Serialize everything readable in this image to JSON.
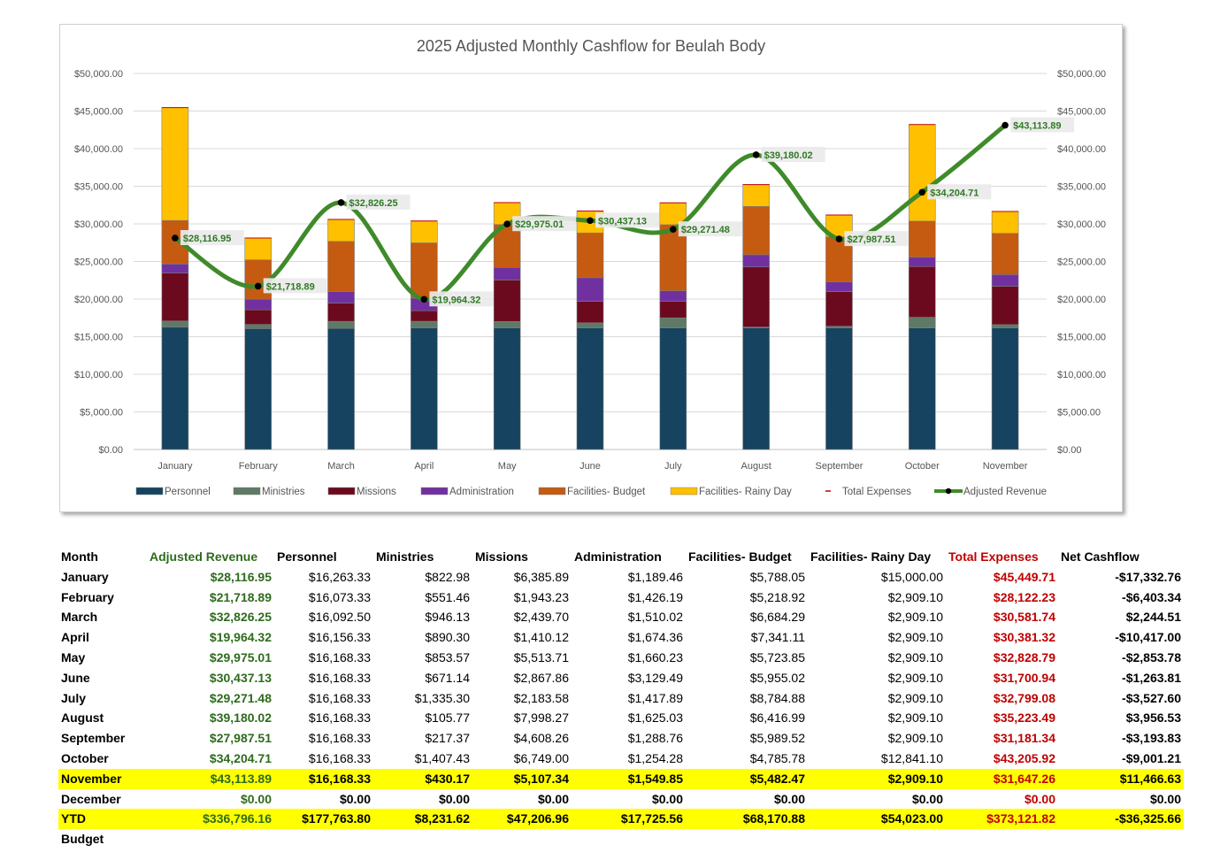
{
  "chart_data": {
    "type": "bar",
    "title": "2025 Adjusted Monthly Cashflow for Beulah Body",
    "categories": [
      "January",
      "February",
      "March",
      "April",
      "May",
      "June",
      "July",
      "August",
      "September",
      "October",
      "November"
    ],
    "ylim": [
      0,
      50000
    ],
    "yticks": [
      "$0.00",
      "$5,000.00",
      "$10,000.00",
      "$15,000.00",
      "$20,000.00",
      "$25,000.00",
      "$30,000.00",
      "$35,000.00",
      "$40,000.00",
      "$45,000.00",
      "$50,000.00"
    ],
    "stacked": true,
    "series": [
      {
        "name": "Personnel",
        "color": "#154360",
        "values": [
          16263.33,
          16073.33,
          16092.5,
          16156.33,
          16168.33,
          16168.33,
          16168.33,
          16168.33,
          16168.33,
          16168.33,
          16168.33
        ]
      },
      {
        "name": "Ministries",
        "color": "#5e7a67",
        "values": [
          822.98,
          551.46,
          946.13,
          890.3,
          853.57,
          671.14,
          1335.3,
          105.77,
          217.37,
          1407.43,
          430.17
        ]
      },
      {
        "name": "Missions",
        "color": "#6b0a1e",
        "values": [
          6385.89,
          1943.23,
          2439.7,
          1410.12,
          5513.71,
          2867.86,
          2183.58,
          7998.27,
          4608.26,
          6749.0,
          5107.34
        ]
      },
      {
        "name": "Administration",
        "color": "#7030a0",
        "values": [
          1189.46,
          1426.19,
          1510.02,
          1674.36,
          1660.23,
          3129.49,
          1417.89,
          1625.03,
          1288.76,
          1254.28,
          1549.85
        ]
      },
      {
        "name": "Facilities- Budget",
        "color": "#c55a11",
        "values": [
          5788.05,
          5218.92,
          6684.29,
          7341.11,
          5723.85,
          5955.02,
          8784.88,
          6416.99,
          5989.52,
          4785.78,
          5482.47
        ]
      },
      {
        "name": "Facilities- Rainy Day",
        "color": "#ffc000",
        "values": [
          15000.0,
          2909.1,
          2909.1,
          2909.1,
          2909.1,
          2909.1,
          2909.1,
          2909.1,
          2909.1,
          12841.1,
          2909.1
        ]
      }
    ],
    "total_expenses": {
      "name": "Total Expenses",
      "color": "#c00000",
      "values": [
        45449.71,
        28122.23,
        30581.74,
        30381.32,
        32828.79,
        31700.94,
        32799.08,
        35223.49,
        31181.34,
        43205.92,
        31647.26
      ]
    },
    "line": {
      "name": "Adjusted Revenue",
      "color": "#3f8a2a",
      "values": [
        28116.95,
        21718.89,
        32826.25,
        19964.32,
        29975.01,
        30437.13,
        29271.48,
        39180.02,
        27987.51,
        34204.71,
        43113.89
      ],
      "labels": [
        "$28,116.95",
        "$21,718.89",
        "$32,826.25",
        "$19,964.32",
        "$29,975.01",
        "$30,437.13",
        "$29,271.48",
        "$39,180.02",
        "$27,987.51",
        "$34,204.71",
        "$43,113.89"
      ]
    },
    "legend": [
      "Personnel",
      "Ministries",
      "Missions",
      "Administration",
      "Facilities- Budget",
      "Facilities- Rainy Day",
      "Total Expenses",
      "Adjusted Revenue"
    ],
    "legend_position": "bottom"
  },
  "table": {
    "headers": [
      "Month",
      "Adjusted Revenue",
      "Personnel",
      "Ministries",
      "Missions",
      "Administration",
      "Facilities- Budget",
      "Facilities- Rainy Day",
      "Total Expenses",
      "Net Cashflow"
    ],
    "rows": [
      [
        "January",
        "$28,116.95",
        "$16,263.33",
        "$822.98",
        "$6,385.89",
        "$1,189.46",
        "$5,788.05",
        "$15,000.00",
        "$45,449.71",
        "-$17,332.76"
      ],
      [
        "February",
        "$21,718.89",
        "$16,073.33",
        "$551.46",
        "$1,943.23",
        "$1,426.19",
        "$5,218.92",
        "$2,909.10",
        "$28,122.23",
        "-$6,403.34"
      ],
      [
        "March",
        "$32,826.25",
        "$16,092.50",
        "$946.13",
        "$2,439.70",
        "$1,510.02",
        "$6,684.29",
        "$2,909.10",
        "$30,581.74",
        "$2,244.51"
      ],
      [
        "April",
        "$19,964.32",
        "$16,156.33",
        "$890.30",
        "$1,410.12",
        "$1,674.36",
        "$7,341.11",
        "$2,909.10",
        "$30,381.32",
        "-$10,417.00"
      ],
      [
        "May",
        "$29,975.01",
        "$16,168.33",
        "$853.57",
        "$5,513.71",
        "$1,660.23",
        "$5,723.85",
        "$2,909.10",
        "$32,828.79",
        "-$2,853.78"
      ],
      [
        "June",
        "$30,437.13",
        "$16,168.33",
        "$671.14",
        "$2,867.86",
        "$3,129.49",
        "$5,955.02",
        "$2,909.10",
        "$31,700.94",
        "-$1,263.81"
      ],
      [
        "July",
        "$29,271.48",
        "$16,168.33",
        "$1,335.30",
        "$2,183.58",
        "$1,417.89",
        "$8,784.88",
        "$2,909.10",
        "$32,799.08",
        "-$3,527.60"
      ],
      [
        "August",
        "$39,180.02",
        "$16,168.33",
        "$105.77",
        "$7,998.27",
        "$1,625.03",
        "$6,416.99",
        "$2,909.10",
        "$35,223.49",
        "$3,956.53"
      ],
      [
        "September",
        "$27,987.51",
        "$16,168.33",
        "$217.37",
        "$4,608.26",
        "$1,288.76",
        "$5,989.52",
        "$2,909.10",
        "$31,181.34",
        "-$3,193.83"
      ],
      [
        "October",
        "$34,204.71",
        "$16,168.33",
        "$1,407.43",
        "$6,749.00",
        "$1,254.28",
        "$4,785.78",
        "$12,841.10",
        "$43,205.92",
        "-$9,001.21"
      ],
      [
        "November",
        "$43,113.89",
        "$16,168.33",
        "$430.17",
        "$5,107.34",
        "$1,549.85",
        "$5,482.47",
        "$2,909.10",
        "$31,647.26",
        "$11,466.63"
      ],
      [
        "December",
        "$0.00",
        "$0.00",
        "$0.00",
        "$0.00",
        "$0.00",
        "$0.00",
        "$0.00",
        "$0.00",
        "$0.00"
      ],
      [
        "YTD",
        "$336,796.16",
        "$177,763.80",
        "$8,231.62",
        "$47,206.96",
        "$17,725.56",
        "$68,170.88",
        "$54,023.00",
        "$373,121.82",
        "-$36,325.66"
      ],
      [
        "Budget",
        "",
        "",
        "",
        "",
        "",
        "",
        "",
        "",
        ""
      ]
    ],
    "row_styles": [
      "",
      "",
      "",
      "",
      "",
      "",
      "",
      "",
      "",
      "",
      "highlight",
      "bold",
      "highlight",
      ""
    ]
  }
}
